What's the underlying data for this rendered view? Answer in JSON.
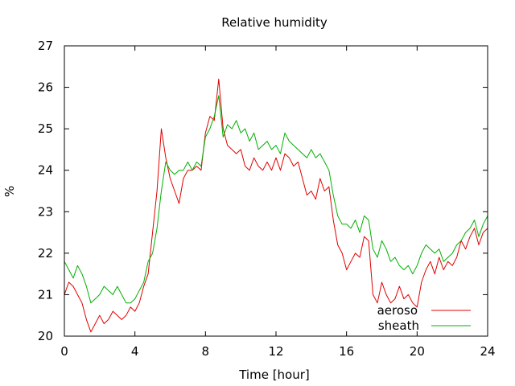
{
  "chart_data": {
    "type": "line",
    "title": "Relative humidity",
    "xlabel": "Time [hour]",
    "ylabel": "%",
    "xlim": [
      0,
      24
    ],
    "ylim": [
      20,
      27
    ],
    "xticks": [
      "0",
      "4",
      "8",
      "12",
      "16",
      "20",
      "24"
    ],
    "yticks": [
      "20",
      "21",
      "22",
      "23",
      "24",
      "25",
      "26",
      "27"
    ],
    "grid": false,
    "legend_position": "bottom-right",
    "series": [
      {
        "name": "aeroso",
        "color": "#e00000",
        "x": [
          0,
          0.25,
          0.5,
          0.75,
          1,
          1.25,
          1.5,
          1.75,
          2,
          2.25,
          2.5,
          2.75,
          3,
          3.25,
          3.5,
          3.75,
          4,
          4.25,
          4.5,
          4.75,
          5,
          5.25,
          5.5,
          5.75,
          6,
          6.25,
          6.5,
          6.75,
          7,
          7.25,
          7.5,
          7.75,
          8,
          8.25,
          8.5,
          8.75,
          9,
          9.25,
          9.5,
          9.75,
          10,
          10.25,
          10.5,
          10.75,
          11,
          11.25,
          11.5,
          11.75,
          12,
          12.25,
          12.5,
          12.75,
          13,
          13.25,
          13.5,
          13.75,
          14,
          14.25,
          14.5,
          14.75,
          15,
          15.25,
          15.5,
          15.75,
          16,
          16.25,
          16.5,
          16.75,
          17,
          17.25,
          17.5,
          17.75,
          18,
          18.25,
          18.5,
          18.75,
          19,
          19.25,
          19.5,
          19.75,
          20,
          20.25,
          20.5,
          20.75,
          21,
          21.25,
          21.5,
          21.75,
          22,
          22.25,
          22.5,
          22.75,
          23,
          23.25,
          23.5,
          23.75,
          24
        ],
        "values": [
          21.0,
          21.3,
          21.2,
          21.0,
          20.8,
          20.4,
          20.1,
          20.3,
          20.5,
          20.3,
          20.4,
          20.6,
          20.5,
          20.4,
          20.5,
          20.7,
          20.6,
          20.8,
          21.2,
          21.5,
          22.5,
          23.5,
          25.0,
          24.3,
          23.8,
          23.5,
          23.2,
          23.8,
          24.0,
          24.0,
          24.1,
          24.0,
          24.9,
          25.3,
          25.2,
          26.2,
          25.0,
          24.6,
          24.5,
          24.4,
          24.5,
          24.1,
          24.0,
          24.3,
          24.1,
          24.0,
          24.2,
          24.0,
          24.3,
          24.0,
          24.4,
          24.3,
          24.1,
          24.2,
          23.8,
          23.4,
          23.5,
          23.3,
          23.8,
          23.5,
          23.6,
          22.8,
          22.2,
          22.0,
          21.6,
          21.8,
          22.0,
          21.9,
          22.4,
          22.3,
          21.0,
          20.8,
          21.3,
          21.0,
          20.8,
          20.9,
          21.2,
          20.9,
          21.0,
          20.8,
          20.7,
          21.3,
          21.6,
          21.8,
          21.5,
          21.9,
          21.6,
          21.8,
          21.7,
          21.9,
          22.3,
          22.1,
          22.4,
          22.6,
          22.2,
          22.5,
          22.6
        ]
      },
      {
        "name": "sheath",
        "color": "#00b000",
        "x": [
          0,
          0.25,
          0.5,
          0.75,
          1,
          1.25,
          1.5,
          1.75,
          2,
          2.25,
          2.5,
          2.75,
          3,
          3.25,
          3.5,
          3.75,
          4,
          4.25,
          4.5,
          4.75,
          5,
          5.25,
          5.5,
          5.75,
          6,
          6.25,
          6.5,
          6.75,
          7,
          7.25,
          7.5,
          7.75,
          8,
          8.25,
          8.5,
          8.75,
          9,
          9.25,
          9.5,
          9.75,
          10,
          10.25,
          10.5,
          10.75,
          11,
          11.25,
          11.5,
          11.75,
          12,
          12.25,
          12.5,
          12.75,
          13,
          13.25,
          13.5,
          13.75,
          14,
          14.25,
          14.5,
          14.75,
          15,
          15.25,
          15.5,
          15.75,
          16,
          16.25,
          16.5,
          16.75,
          17,
          17.25,
          17.5,
          17.75,
          18,
          18.25,
          18.5,
          18.75,
          19,
          19.25,
          19.5,
          19.75,
          20,
          20.25,
          20.5,
          20.75,
          21,
          21.25,
          21.5,
          21.75,
          22,
          22.25,
          22.5,
          22.75,
          23,
          23.25,
          23.5,
          23.75,
          24
        ],
        "values": [
          21.8,
          21.6,
          21.4,
          21.7,
          21.5,
          21.2,
          20.8,
          20.9,
          21.0,
          21.2,
          21.1,
          21.0,
          21.2,
          21.0,
          20.8,
          20.8,
          20.9,
          21.1,
          21.3,
          21.8,
          22.0,
          22.6,
          23.5,
          24.2,
          24.0,
          23.9,
          24.0,
          24.0,
          24.2,
          24.0,
          24.2,
          24.1,
          24.8,
          25.0,
          25.3,
          25.8,
          24.8,
          25.1,
          25.0,
          25.2,
          24.9,
          25.0,
          24.7,
          24.9,
          24.5,
          24.6,
          24.7,
          24.5,
          24.6,
          24.4,
          24.9,
          24.7,
          24.6,
          24.5,
          24.4,
          24.3,
          24.5,
          24.3,
          24.4,
          24.2,
          24.0,
          23.4,
          22.9,
          22.7,
          22.7,
          22.6,
          22.8,
          22.5,
          22.9,
          22.8,
          22.1,
          21.9,
          22.3,
          22.1,
          21.8,
          21.9,
          21.7,
          21.6,
          21.7,
          21.5,
          21.7,
          22.0,
          22.2,
          22.1,
          22.0,
          22.1,
          21.8,
          21.9,
          22.0,
          22.2,
          22.3,
          22.5,
          22.6,
          22.8,
          22.4,
          22.7,
          22.9
        ]
      }
    ]
  }
}
